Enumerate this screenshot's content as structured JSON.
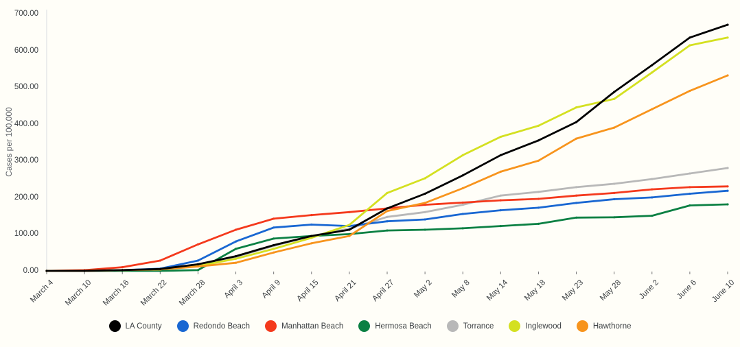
{
  "chart_data": {
    "type": "line",
    "title": "",
    "xlabel": "",
    "ylabel": "Cases per 100,000",
    "ylim": [
      0,
      700
    ],
    "yticks": [
      "0.00",
      "100.00",
      "200.00",
      "300.00",
      "400.00",
      "500.00",
      "600.00",
      "700.00"
    ],
    "grid": false,
    "legend_position": "bottom",
    "background_color": "#fffef8",
    "axis_line_color": "#dadce0",
    "tick_mark_color": "#757575",
    "categories": [
      "March 4",
      "March 10",
      "March 16",
      "March 22",
      "March 28",
      "April 3",
      "April 9",
      "April 15",
      "April 21",
      "April 27",
      "May 2",
      "May 8",
      "May 14",
      "May 18",
      "May 23",
      "May 28",
      "June 2",
      "June 6",
      "June 10"
    ],
    "series": [
      {
        "name": "LA County",
        "color": "#000000",
        "values": [
          0,
          0,
          2,
          5,
          18,
          40,
          70,
          95,
          112,
          170,
          210,
          260,
          315,
          355,
          405,
          487,
          560,
          635,
          670
        ]
      },
      {
        "name": "Redondo Beach",
        "color": "#1967d2",
        "values": [
          0,
          0,
          2,
          6,
          28,
          80,
          118,
          126,
          122,
          135,
          140,
          155,
          165,
          172,
          185,
          195,
          200,
          210,
          218
        ]
      },
      {
        "name": "Manhattan Beach",
        "color": "#f4391c",
        "values": [
          0,
          2,
          10,
          28,
          72,
          112,
          142,
          152,
          160,
          170,
          180,
          186,
          192,
          196,
          205,
          212,
          222,
          228,
          230
        ]
      },
      {
        "name": "Hermosa Beach",
        "color": "#0b8043",
        "values": [
          0,
          0,
          0,
          0,
          2,
          60,
          88,
          95,
          100,
          110,
          112,
          116,
          122,
          128,
          145,
          146,
          150,
          178,
          181
        ]
      },
      {
        "name": "Torrance",
        "color": "#b8b8b8",
        "values": [
          0,
          0,
          2,
          5,
          14,
          38,
          68,
          95,
          115,
          147,
          160,
          180,
          205,
          215,
          228,
          237,
          250,
          265,
          280
        ]
      },
      {
        "name": "Inglewood",
        "color": "#d4e021",
        "values": [
          0,
          0,
          2,
          4,
          13,
          33,
          60,
          90,
          125,
          212,
          252,
          315,
          365,
          395,
          445,
          468,
          540,
          614,
          635
        ]
      },
      {
        "name": "Hawthorne",
        "color": "#f7941d",
        "values": [
          0,
          0,
          2,
          4,
          12,
          22,
          50,
          75,
          95,
          163,
          185,
          225,
          270,
          300,
          360,
          390,
          440,
          490,
          532
        ]
      }
    ]
  }
}
